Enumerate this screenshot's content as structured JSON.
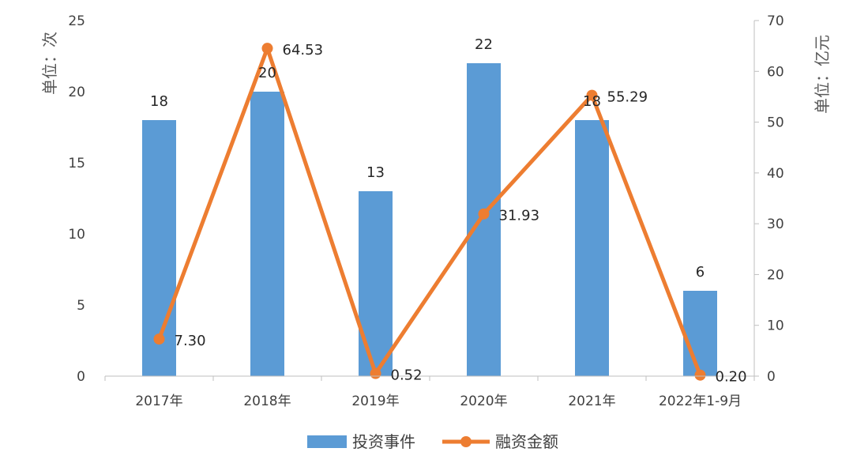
{
  "chart_data": {
    "type": "bar",
    "categories": [
      "2017年",
      "2018年",
      "2019年",
      "2020年",
      "2021年",
      "2022年1-9月"
    ],
    "series": [
      {
        "name": "投资事件",
        "type": "bar",
        "axis": "left",
        "values": [
          18,
          20,
          13,
          22,
          18,
          6
        ],
        "labels": [
          "18",
          "20",
          "13",
          "22",
          "18",
          "6"
        ],
        "color": "#5B9BD5"
      },
      {
        "name": "融资金额",
        "type": "line",
        "axis": "right",
        "values": [
          7.3,
          64.53,
          0.52,
          31.93,
          55.29,
          0.2
        ],
        "labels": [
          "7.30",
          "64.53",
          "0.52",
          "31.93",
          "55.29",
          "0.20"
        ],
        "color": "#ED7D31"
      }
    ],
    "ylabel_left": "单位：次",
    "ylabel_right": "单位：亿元",
    "ylim_left": [
      0,
      25
    ],
    "ylim_right": [
      0,
      70
    ],
    "yticks_left": [
      "0",
      "5",
      "10",
      "15",
      "20",
      "25"
    ],
    "yticks_right": [
      "0",
      "10",
      "20",
      "30",
      "40",
      "50",
      "60",
      "70"
    ],
    "grid": false,
    "legend_position": "bottom"
  }
}
